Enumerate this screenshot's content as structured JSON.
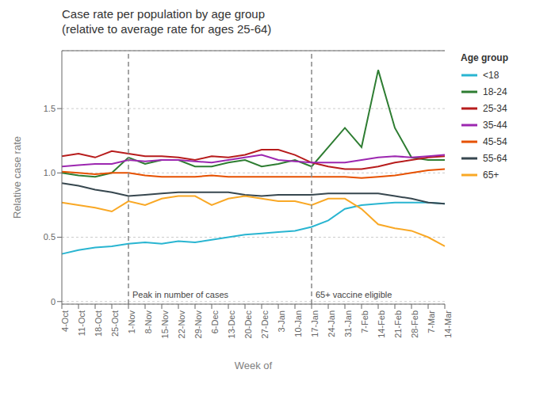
{
  "chart_data": {
    "type": "line",
    "title": "Case rate per population by age group\n(relative to average rate for ages 25-64)",
    "x_label": "Week of",
    "y_label": "Relative case rate",
    "legend_title": "Age group",
    "legend": "right",
    "grid": true,
    "categories": [
      "4-Oct",
      "11-Oct",
      "18-Oct",
      "25-Oct",
      "1-Nov",
      "8-Nov",
      "15-Nov",
      "22-Nov",
      "29-Nov",
      "6-Dec",
      "13-Dec",
      "20-Dec",
      "27-Dec",
      "3-Jan",
      "10-Jan",
      "17-Jan",
      "24-Jan",
      "31-Jan",
      "7-Feb",
      "14-Feb",
      "21-Feb",
      "28-Feb",
      "7-Mar",
      "14-Mar"
    ],
    "series": [
      {
        "name": "<18",
        "color": "#29b5d1",
        "values": [
          0.37,
          0.4,
          0.42,
          0.43,
          0.45,
          0.46,
          0.45,
          0.47,
          0.46,
          0.48,
          0.5,
          0.52,
          0.53,
          0.54,
          0.55,
          0.58,
          0.63,
          0.72,
          0.75,
          0.76,
          0.77,
          0.77,
          0.77,
          0.76
        ]
      },
      {
        "name": "18-24",
        "color": "#2e7d32",
        "values": [
          1.0,
          0.98,
          0.97,
          1.0,
          1.12,
          1.07,
          1.1,
          1.1,
          1.05,
          1.05,
          1.08,
          1.1,
          1.05,
          1.07,
          1.1,
          1.05,
          1.2,
          1.35,
          1.2,
          1.8,
          1.35,
          1.12,
          1.1,
          1.1
        ]
      },
      {
        "name": "25-34",
        "color": "#b71c1c",
        "values": [
          1.13,
          1.15,
          1.12,
          1.17,
          1.15,
          1.13,
          1.13,
          1.12,
          1.1,
          1.13,
          1.12,
          1.14,
          1.18,
          1.18,
          1.14,
          1.08,
          1.05,
          1.03,
          1.03,
          1.05,
          1.08,
          1.1,
          1.12,
          1.13
        ]
      },
      {
        "name": "35-44",
        "color": "#9c27b0",
        "values": [
          1.05,
          1.06,
          1.07,
          1.07,
          1.1,
          1.09,
          1.1,
          1.1,
          1.09,
          1.08,
          1.1,
          1.12,
          1.14,
          1.1,
          1.09,
          1.08,
          1.08,
          1.08,
          1.1,
          1.12,
          1.13,
          1.12,
          1.13,
          1.14
        ]
      },
      {
        "name": "45-54",
        "color": "#e65100",
        "values": [
          1.01,
          1.0,
          0.99,
          1.0,
          1.0,
          0.98,
          0.97,
          0.97,
          0.97,
          0.98,
          0.97,
          0.97,
          0.97,
          0.97,
          0.97,
          0.97,
          0.97,
          0.97,
          0.96,
          0.97,
          0.98,
          1.0,
          1.02,
          1.03
        ]
      },
      {
        "name": "55-64",
        "color": "#37474f",
        "values": [
          0.92,
          0.9,
          0.87,
          0.85,
          0.82,
          0.83,
          0.84,
          0.85,
          0.85,
          0.85,
          0.85,
          0.83,
          0.82,
          0.83,
          0.83,
          0.83,
          0.84,
          0.84,
          0.84,
          0.84,
          0.82,
          0.8,
          0.77,
          0.76
        ]
      },
      {
        "name": "65+",
        "color": "#f9a825",
        "values": [
          0.77,
          0.75,
          0.73,
          0.7,
          0.78,
          0.75,
          0.8,
          0.82,
          0.82,
          0.75,
          0.8,
          0.82,
          0.8,
          0.78,
          0.78,
          0.75,
          0.8,
          0.8,
          0.72,
          0.6,
          0.57,
          0.55,
          0.5,
          0.43
        ]
      }
    ],
    "ylim": [
      -0.02,
      1.95
    ],
    "yticks": [
      0,
      0.5,
      {
        "value": 1.0,
        "label": "1.0"
      },
      1.5
    ],
    "annotations": [
      {
        "x": "1-Nov",
        "text": "Peak in number of cases",
        "line_style": "dashed"
      },
      {
        "x": "17-Jan",
        "text": "65+ vaccine eligible",
        "line_style": "dashed"
      }
    ]
  }
}
